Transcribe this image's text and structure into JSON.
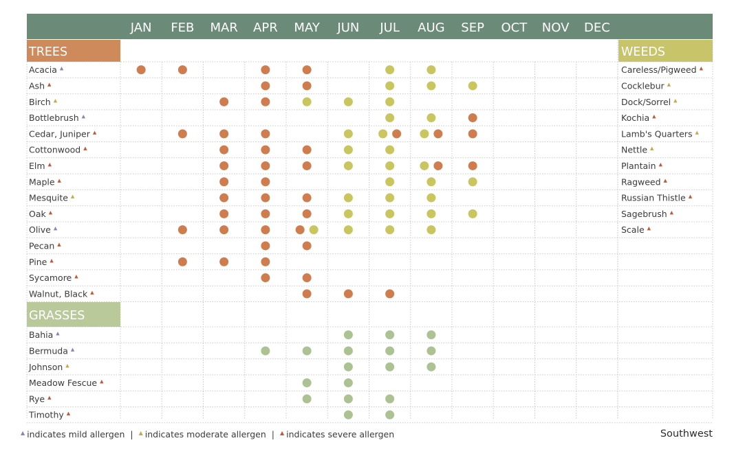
{
  "colors": {
    "header_bg": "#6b8b78",
    "trees": "#cf8a5b",
    "grasses": "#b9c99a",
    "weeds": "#c8c46a",
    "dot_orange": "#cf7d4f",
    "dot_yellow": "#c9c55f",
    "dot_green": "#adc293",
    "tri_mild": "#8a84b0",
    "tri_moderate": "#c8a84e",
    "tri_severe": "#c0583a"
  },
  "months": [
    "JAN",
    "FEB",
    "MAR",
    "APR",
    "MAY",
    "JUN",
    "JUL",
    "AUG",
    "SEP",
    "OCT",
    "NOV",
    "DEC"
  ],
  "sections": {
    "trees": "TREES",
    "grasses": "GRASSES",
    "weeds": "WEEDS"
  },
  "chart_data": {
    "type": "table",
    "trees": [
      {
        "name": "Acacia",
        "allergen": "mild",
        "months": {
          "JAN": [
            "orange"
          ],
          "FEB": [
            "orange"
          ],
          "APR": [
            "orange"
          ],
          "MAY": [
            "orange"
          ],
          "JUL": [
            "yellow"
          ],
          "AUG": [
            "yellow"
          ]
        }
      },
      {
        "name": "Ash",
        "allergen": "severe",
        "months": {
          "APR": [
            "orange"
          ],
          "MAY": [
            "orange"
          ],
          "JUL": [
            "yellow"
          ],
          "AUG": [
            "yellow"
          ],
          "SEP": [
            "yellow"
          ]
        }
      },
      {
        "name": "Birch",
        "allergen": "moderate",
        "months": {
          "MAR": [
            "orange"
          ],
          "APR": [
            "orange"
          ],
          "MAY": [
            "yellow"
          ],
          "JUN": [
            "yellow"
          ],
          "JUL": [
            "yellow"
          ]
        }
      },
      {
        "name": "Bottlebrush",
        "allergen": "mild",
        "months": {
          "JUL": [
            "yellow"
          ],
          "AUG": [
            "yellow"
          ],
          "SEP": [
            "orange"
          ]
        }
      },
      {
        "name": "Cedar, Juniper",
        "allergen": "severe",
        "months": {
          "FEB": [
            "orange"
          ],
          "MAR": [
            "orange"
          ],
          "APR": [
            "orange"
          ],
          "JUN": [
            "yellow"
          ],
          "JUL": [
            "yellow",
            "orange"
          ],
          "AUG": [
            "yellow",
            "orange"
          ],
          "SEP": [
            "orange"
          ]
        }
      },
      {
        "name": "Cottonwood",
        "allergen": "severe",
        "months": {
          "MAR": [
            "orange"
          ],
          "APR": [
            "orange"
          ],
          "MAY": [
            "orange"
          ],
          "JUN": [
            "yellow"
          ],
          "JUL": [
            "yellow"
          ]
        }
      },
      {
        "name": "Elm",
        "allergen": "severe",
        "months": {
          "MAR": [
            "orange"
          ],
          "APR": [
            "orange"
          ],
          "MAY": [
            "orange"
          ],
          "JUN": [
            "yellow"
          ],
          "JUL": [
            "yellow"
          ],
          "AUG": [
            "yellow",
            "orange"
          ],
          "SEP": [
            "orange"
          ]
        }
      },
      {
        "name": "Maple",
        "allergen": "severe",
        "months": {
          "MAR": [
            "orange"
          ],
          "APR": [
            "orange"
          ],
          "JUL": [
            "yellow"
          ],
          "AUG": [
            "yellow"
          ],
          "SEP": [
            "yellow"
          ]
        }
      },
      {
        "name": "Mesquite",
        "allergen": "moderate",
        "months": {
          "MAR": [
            "orange"
          ],
          "APR": [
            "orange"
          ],
          "MAY": [
            "orange"
          ],
          "JUN": [
            "yellow"
          ],
          "JUL": [
            "yellow"
          ],
          "AUG": [
            "yellow"
          ]
        }
      },
      {
        "name": "Oak",
        "allergen": "severe",
        "months": {
          "MAR": [
            "orange"
          ],
          "APR": [
            "orange"
          ],
          "MAY": [
            "orange"
          ],
          "JUN": [
            "yellow"
          ],
          "JUL": [
            "yellow"
          ],
          "AUG": [
            "yellow"
          ],
          "SEP": [
            "yellow"
          ]
        }
      },
      {
        "name": "Olive",
        "allergen": "mild",
        "months": {
          "FEB": [
            "orange"
          ],
          "MAR": [
            "orange"
          ],
          "APR": [
            "orange"
          ],
          "MAY": [
            "orange",
            "yellow"
          ],
          "JUN": [
            "yellow"
          ],
          "JUL": [
            "yellow"
          ],
          "AUG": [
            "yellow"
          ]
        }
      },
      {
        "name": "Pecan",
        "allergen": "severe",
        "months": {
          "APR": [
            "orange"
          ],
          "MAY": [
            "orange"
          ]
        }
      },
      {
        "name": "Pine",
        "allergen": "severe",
        "months": {
          "FEB": [
            "orange"
          ],
          "MAR": [
            "orange"
          ],
          "APR": [
            "orange"
          ]
        }
      },
      {
        "name": "Sycamore",
        "allergen": "severe",
        "months": {
          "APR": [
            "orange"
          ],
          "MAY": [
            "orange"
          ]
        }
      },
      {
        "name": "Walnut, Black",
        "allergen": "severe",
        "months": {
          "MAY": [
            "orange"
          ],
          "JUN": [
            "orange"
          ],
          "JUL": [
            "orange"
          ]
        }
      }
    ],
    "grasses": [
      {
        "name": "Bahia",
        "allergen": "mild",
        "months": {
          "JUN": [
            "green"
          ],
          "JUL": [
            "green"
          ],
          "AUG": [
            "green"
          ]
        }
      },
      {
        "name": "Bermuda",
        "allergen": "mild",
        "months": {
          "APR": [
            "green"
          ],
          "MAY": [
            "green"
          ],
          "JUN": [
            "green"
          ],
          "JUL": [
            "green"
          ],
          "AUG": [
            "green"
          ]
        }
      },
      {
        "name": "Johnson",
        "allergen": "moderate",
        "months": {
          "JUN": [
            "green"
          ],
          "JUL": [
            "green"
          ],
          "AUG": [
            "green"
          ]
        }
      },
      {
        "name": "Meadow Fescue",
        "allergen": "severe",
        "months": {
          "MAY": [
            "green"
          ],
          "JUN": [
            "green"
          ]
        }
      },
      {
        "name": "Rye",
        "allergen": "severe",
        "months": {
          "MAY": [
            "green"
          ],
          "JUN": [
            "green"
          ],
          "JUL": [
            "green"
          ]
        }
      },
      {
        "name": "Timothy",
        "allergen": "severe",
        "months": {
          "JUN": [
            "green"
          ],
          "JUL": [
            "green"
          ]
        }
      }
    ],
    "weeds": [
      {
        "name": "Careless/Pigweed",
        "allergen": "severe"
      },
      {
        "name": "Cocklebur",
        "allergen": "moderate"
      },
      {
        "name": "Dock/Sorrel",
        "allergen": "moderate"
      },
      {
        "name": "Kochia",
        "allergen": "severe"
      },
      {
        "name": "Lamb's Quarters",
        "allergen": "moderate"
      },
      {
        "name": "Nettle",
        "allergen": "moderate"
      },
      {
        "name": "Plantain",
        "allergen": "severe"
      },
      {
        "name": "Ragweed",
        "allergen": "severe"
      },
      {
        "name": "Russian Thistle",
        "allergen": "severe"
      },
      {
        "name": "Sagebrush",
        "allergen": "severe"
      },
      {
        "name": "Scale",
        "allergen": "severe"
      }
    ]
  },
  "legend": {
    "mild": "indicates mild allergen",
    "moderate": "indicates moderate allergen",
    "severe": "indicates severe allergen",
    "separator": "|"
  },
  "region": "Southwest",
  "icons": {
    "triangle": "▲"
  }
}
